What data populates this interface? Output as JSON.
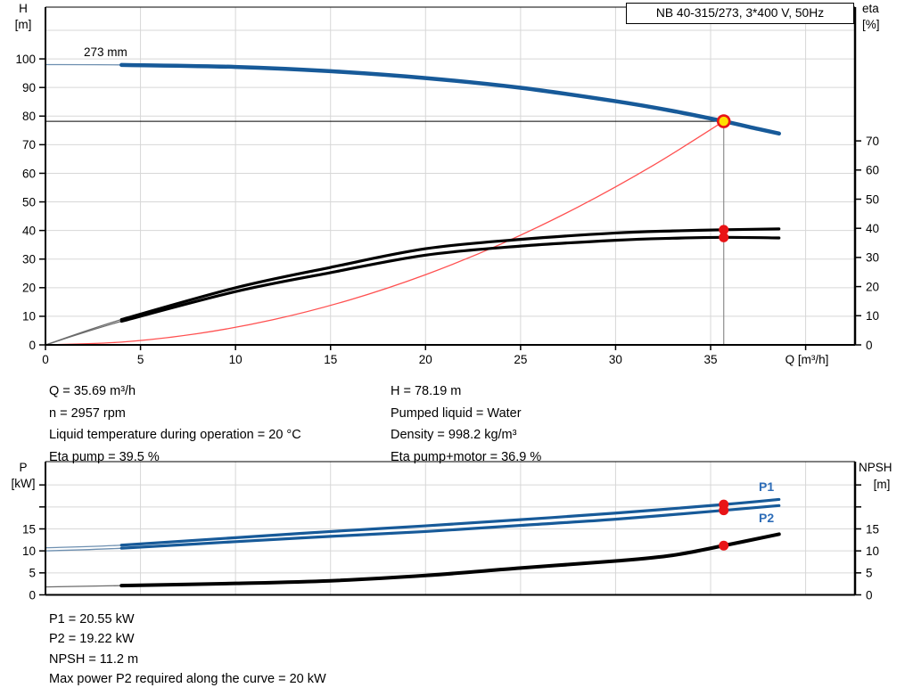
{
  "title_box": {
    "label": "NB 40-315/273, 3*400 V, 50Hz"
  },
  "colors": {
    "curve_blue": "#175a99",
    "curve_blue_thin": "#6d8fb0",
    "curve_black": "#000000",
    "curve_black_thin": "#6b6b6b",
    "system_curve_red": "#ff5050",
    "marker_red": "#e81417",
    "duty_yellow": "#ffdf00",
    "grid": "#d7d7d7",
    "crosshair_gray": "#8e8e8e",
    "series_label_blue": "#2e6db8"
  },
  "results": {
    "top_left": [
      "Q = 35.69 m³/h",
      "n = 2957 rpm",
      "Liquid temperature during operation = 20 °C",
      "Eta pump = 39.5 %"
    ],
    "top_right": [
      "H = 78.19 m",
      "Pumped liquid = Water",
      "Density = 998.2 kg/m³",
      "Eta pump+motor = 36.9 %"
    ],
    "bottom": [
      "P1 = 20.55 kW",
      "P2 = 19.22 kW",
      "NPSH = 11.2 m",
      "Max power P2 required along the curve = 20 kW"
    ]
  },
  "chart_data": [
    {
      "type": "line",
      "title": "NB 40-315/273, 3*400 V, 50Hz",
      "curve_size_label": "273 mm",
      "x": {
        "label": "Q [m³/h]",
        "min": 0,
        "max": 42.6,
        "ticks": [
          0,
          5,
          10,
          15,
          20,
          25,
          30,
          35
        ],
        "minor_ticks": [
          40
        ],
        "grid": [
          5,
          10,
          15,
          20,
          25,
          30,
          35,
          40
        ]
      },
      "y_left": {
        "label": "H",
        "unit": "[m]",
        "min": 0,
        "max": 118.1,
        "ticks": [
          0,
          10,
          20,
          30,
          40,
          50,
          60,
          70,
          80,
          90,
          100
        ],
        "grid": [
          10,
          20,
          30,
          40,
          50,
          60,
          70,
          80,
          90,
          100,
          110
        ]
      },
      "y_right": {
        "label": "eta",
        "unit": "[%]",
        "min": 0,
        "max": 115.9,
        "ticks": [
          0,
          10,
          20,
          30,
          40,
          50,
          60,
          70
        ]
      },
      "series": [
        {
          "name": "system-curve",
          "axis": "left",
          "color": "#ff5050",
          "width": 1.3,
          "points": [
            [
              0,
              0
            ],
            [
              4,
              0.98
            ],
            [
              8,
              3.93
            ],
            [
              12,
              8.84
            ],
            [
              16,
              15.71
            ],
            [
              20,
              24.55
            ],
            [
              24,
              35.35
            ],
            [
              28,
              48.12
            ],
            [
              32,
              62.85
            ],
            [
              35.69,
              78.19
            ]
          ]
        },
        {
          "name": "eta-pump",
          "axis": "right",
          "color": "#000000",
          "width": 3.2,
          "thin_to": 4,
          "thin_color": "#6b6b6b",
          "points": [
            [
              0,
              0
            ],
            [
              4,
              8.7
            ],
            [
              10,
              19.6
            ],
            [
              15,
              26.6
            ],
            [
              20,
              33.0
            ],
            [
              25,
              36.2
            ],
            [
              30,
              38.4
            ],
            [
              33,
              39.1
            ],
            [
              35.69,
              39.5
            ],
            [
              38.6,
              39.8
            ]
          ]
        },
        {
          "name": "eta-pump-motor",
          "axis": "right",
          "color": "#000000",
          "width": 3.2,
          "thin_to": 4,
          "thin_color": "#6b6b6b",
          "points": [
            [
              0,
              0
            ],
            [
              4,
              8.1
            ],
            [
              10,
              18.3
            ],
            [
              15,
              24.8
            ],
            [
              20,
              30.8
            ],
            [
              25,
              33.9
            ],
            [
              30,
              35.9
            ],
            [
              33,
              36.6
            ],
            [
              35.69,
              36.9
            ],
            [
              38.6,
              36.7
            ]
          ]
        },
        {
          "name": "head-curve",
          "axis": "left",
          "color": "#175a99",
          "width": 4.5,
          "thin_to": 4,
          "thin_color": "#6d8fb0",
          "points": [
            [
              0,
              98
            ],
            [
              4,
              97.9
            ],
            [
              10,
              97.2
            ],
            [
              15,
              95.7
            ],
            [
              20,
              93.3
            ],
            [
              25,
              89.9
            ],
            [
              30,
              85.2
            ],
            [
              33,
              81.8
            ],
            [
              35.69,
              78.19
            ],
            [
              37.5,
              75.5
            ],
            [
              38.6,
              73.9
            ]
          ]
        }
      ],
      "crosshair": {
        "q": 35.69,
        "h": 78.19
      },
      "duty_point": {
        "q": 35.69,
        "h": 78.19
      },
      "markers": [
        {
          "q": 35.69,
          "v": 39.5,
          "axis": "right"
        },
        {
          "q": 35.69,
          "v": 36.9,
          "axis": "right"
        }
      ]
    },
    {
      "type": "line",
      "x": {
        "label": "",
        "min": 0,
        "max": 42.6,
        "ticks": [],
        "minor_ticks": [],
        "grid": [
          5,
          10,
          15,
          20,
          25,
          30,
          35,
          40
        ]
      },
      "y_left": {
        "label": "P",
        "unit": "[kW]",
        "min": 0,
        "max": 30.3,
        "ticks": [
          0,
          5,
          10,
          15
        ],
        "minor_ticks": [
          20,
          25
        ],
        "grid": [
          5,
          10,
          15,
          20,
          25
        ]
      },
      "y_right": {
        "label": "NPSH",
        "unit": "[m]",
        "min": 0,
        "max": 30.3,
        "ticks": [
          0,
          5,
          10,
          15
        ],
        "minor_ticks": [
          20,
          25
        ]
      },
      "series": [
        {
          "name": "p1-curve",
          "axis": "left",
          "color": "#175a99",
          "width": 3.2,
          "thin_to": 4,
          "thin_color": "#6d8fb0",
          "points": [
            [
              0,
              10.7
            ],
            [
              4,
              11.3
            ],
            [
              10,
              13.0
            ],
            [
              15,
              14.4
            ],
            [
              20,
              15.7
            ],
            [
              25,
              17.1
            ],
            [
              30,
              18.6
            ],
            [
              35.69,
              20.55
            ],
            [
              38.6,
              21.7
            ]
          ]
        },
        {
          "name": "p2-curve",
          "axis": "left",
          "color": "#175a99",
          "width": 3.2,
          "thin_to": 4,
          "thin_color": "#6d8fb0",
          "points": [
            [
              0,
              10.0
            ],
            [
              4,
              10.6
            ],
            [
              10,
              12.1
            ],
            [
              15,
              13.3
            ],
            [
              20,
              14.4
            ],
            [
              25,
              15.8
            ],
            [
              30,
              17.2
            ],
            [
              35.69,
              19.22
            ],
            [
              38.6,
              20.3
            ]
          ]
        },
        {
          "name": "npsh-curve",
          "axis": "right",
          "color": "#000000",
          "width": 4.0,
          "thin_to": 4,
          "thin_color": "#6b6b6b",
          "points": [
            [
              0,
              1.8
            ],
            [
              4,
              2.1
            ],
            [
              10,
              2.6
            ],
            [
              15,
              3.2
            ],
            [
              20,
              4.4
            ],
            [
              25,
              6.1
            ],
            [
              30,
              7.7
            ],
            [
              33,
              9.0
            ],
            [
              35.69,
              11.2
            ],
            [
              38.6,
              13.8
            ]
          ]
        }
      ],
      "markers": [
        {
          "q": 35.69,
          "v": 20.55,
          "axis": "left"
        },
        {
          "q": 35.69,
          "v": 19.22,
          "axis": "left"
        },
        {
          "q": 35.69,
          "v": 11.2,
          "axis": "right"
        }
      ],
      "series_labels": [
        {
          "text": "P1"
        },
        {
          "text": "P2"
        }
      ]
    }
  ]
}
